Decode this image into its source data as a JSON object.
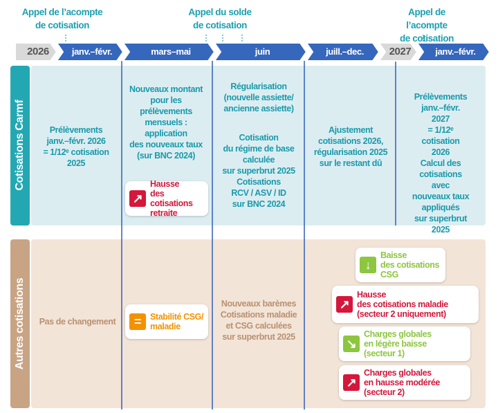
{
  "header": {
    "labels": [
      "Appel de l’acompte\nde cotisation",
      "Appel du solde\nde cotisation",
      "Appel de l’acompte\nde cotisation"
    ]
  },
  "timeline": [
    "2026",
    "janv.–févr.",
    "mars–mai",
    "juin",
    "juill.–dec.",
    "2027",
    "janv.–févr."
  ],
  "rows": [
    {
      "title": "Cotisations Carmf",
      "cells": [
        {
          "text": "Prélèvements\njanv.–févr. 2026\n= 1/12ᵉ cotisation\n2025"
        },
        {
          "text": "Nouveaux montant\npour les\nprélèvements\nmensuels :\napplication\ndes nouveaux taux\n(sur BNC 2024)"
        },
        {
          "text": "Régularisation\n(nouvelle assiette/\nancienne assiette)"
        },
        {
          "text": "Cotisation\ndu régime de base\ncalculée\nsur superbrut 2025\nCotisations\nRCV / ASV / ID\nsur BNC 2024"
        },
        {
          "text": "Ajustement\ncotisations 2026,\nrégularisation 2025\nsur le restant dû"
        },
        {
          "text": "Prélèvements\njanv.–févr. 2027\n= 1/12ᵉ cotisation\n2026"
        },
        {
          "text": "Calcul des cotisations\navec nouveaux taux\nappliqués\nsur superbrut 2025"
        }
      ]
    },
    {
      "title": "Autres cotisations",
      "cells": [
        {
          "text": "Pas de changement"
        },
        {
          "text": "Nouveaux barèmes\nCotisations maladie\net CSG calculées\nsur superbrut 2025"
        }
      ]
    }
  ],
  "callouts": [
    {
      "text": "Hausse\ndes cotisations\nretraite"
    },
    {
      "text": "Stabilité CSG/\nmaladie"
    },
    {
      "text": "Baisse\ndes cotisations\nCSG"
    },
    {
      "text": "Hausse\ndes cotisations maladie\n(secteur 2 uniquement)"
    },
    {
      "text": "Charges globales\nen légère baisse\n(secteur 1)"
    },
    {
      "text": "Charges globales\nen hausse modérée\n(secteur 2)"
    }
  ]
}
